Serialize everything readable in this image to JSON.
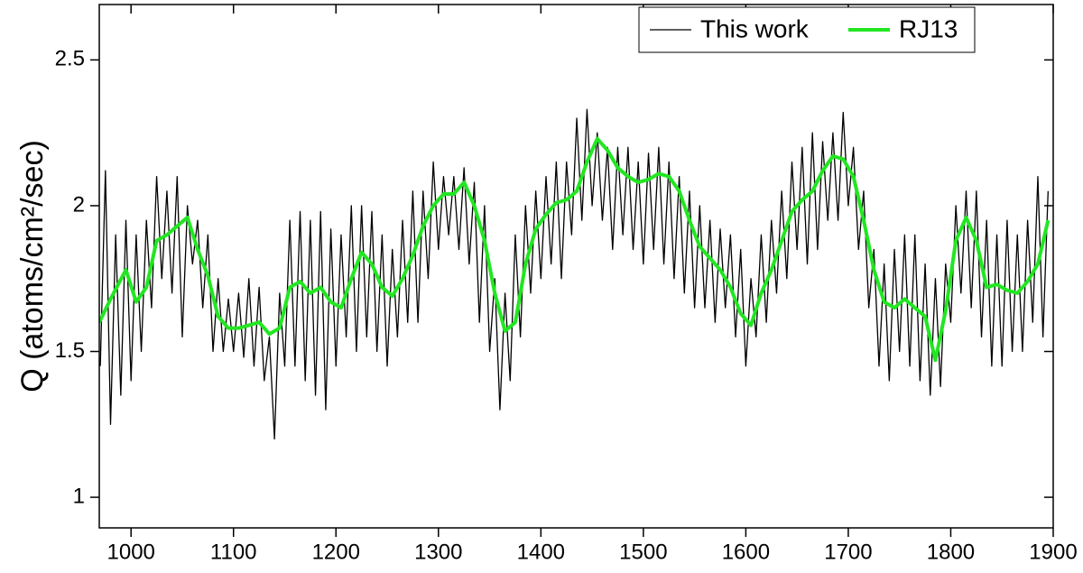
{
  "chart_data": {
    "type": "line",
    "ylabel": "Q (atoms/cm²/sec)",
    "xlim": [
      969,
      1900
    ],
    "xticks": [
      1000,
      1100,
      1200,
      1300,
      1400,
      1500,
      1600,
      1700,
      1800,
      1900
    ],
    "ylim": [
      0.895,
      2.69
    ],
    "yticks": [
      1,
      1.5,
      2,
      2.5
    ],
    "legend": "upper right",
    "series": [
      {
        "name": "This work",
        "color": "#000000",
        "x": [
          970,
          975,
          980,
          985,
          990,
          995,
          1000,
          1005,
          1010,
          1015,
          1020,
          1025,
          1030,
          1035,
          1040,
          1045,
          1050,
          1055,
          1060,
          1065,
          1070,
          1075,
          1080,
          1085,
          1090,
          1095,
          1100,
          1105,
          1110,
          1115,
          1120,
          1125,
          1130,
          1135,
          1140,
          1145,
          1150,
          1155,
          1160,
          1165,
          1170,
          1175,
          1180,
          1185,
          1190,
          1195,
          1200,
          1205,
          1210,
          1215,
          1220,
          1225,
          1230,
          1235,
          1240,
          1245,
          1250,
          1255,
          1260,
          1265,
          1270,
          1275,
          1280,
          1285,
          1290,
          1295,
          1300,
          1305,
          1310,
          1315,
          1320,
          1325,
          1330,
          1335,
          1340,
          1345,
          1350,
          1355,
          1360,
          1365,
          1370,
          1375,
          1380,
          1385,
          1390,
          1395,
          1400,
          1405,
          1410,
          1415,
          1420,
          1425,
          1430,
          1435,
          1440,
          1445,
          1450,
          1455,
          1460,
          1465,
          1470,
          1475,
          1480,
          1485,
          1490,
          1495,
          1500,
          1505,
          1510,
          1515,
          1520,
          1525,
          1530,
          1535,
          1540,
          1545,
          1550,
          1555,
          1560,
          1565,
          1570,
          1575,
          1580,
          1585,
          1590,
          1595,
          1600,
          1605,
          1610,
          1615,
          1620,
          1625,
          1630,
          1635,
          1640,
          1645,
          1650,
          1655,
          1660,
          1665,
          1670,
          1675,
          1680,
          1685,
          1690,
          1695,
          1700,
          1705,
          1710,
          1715,
          1720,
          1725,
          1730,
          1735,
          1740,
          1745,
          1750,
          1755,
          1760,
          1765,
          1770,
          1775,
          1780,
          1785,
          1790,
          1795,
          1800,
          1805,
          1810,
          1815,
          1820,
          1825,
          1830,
          1835,
          1840,
          1845,
          1850,
          1855,
          1860,
          1865,
          1870,
          1875,
          1880,
          1885,
          1890,
          1895
        ],
        "values": [
          1.45,
          2.12,
          1.25,
          1.9,
          1.35,
          1.95,
          1.4,
          1.9,
          1.5,
          1.95,
          1.65,
          2.1,
          1.75,
          2.05,
          1.7,
          2.1,
          1.55,
          2.0,
          1.8,
          1.95,
          1.65,
          1.9,
          1.5,
          1.75,
          1.5,
          1.68,
          1.5,
          1.7,
          1.48,
          1.75,
          1.45,
          1.72,
          1.4,
          1.55,
          1.2,
          1.7,
          1.45,
          1.95,
          1.45,
          1.98,
          1.4,
          1.95,
          1.35,
          1.98,
          1.3,
          1.92,
          1.45,
          1.9,
          1.55,
          2.0,
          1.5,
          2.0,
          1.55,
          1.98,
          1.5,
          1.9,
          1.45,
          1.85,
          1.55,
          1.95,
          1.6,
          2.05,
          1.6,
          2.05,
          1.75,
          2.15,
          1.85,
          2.1,
          1.9,
          2.1,
          1.85,
          2.13,
          1.8,
          2.08,
          1.6,
          2.0,
          1.5,
          1.75,
          1.3,
          1.7,
          1.4,
          1.9,
          1.55,
          2.0,
          1.7,
          2.05,
          1.75,
          2.1,
          1.8,
          2.15,
          1.75,
          2.15,
          1.9,
          2.3,
          1.95,
          2.33,
          2.0,
          2.25,
          1.95,
          2.2,
          1.85,
          2.2,
          1.9,
          2.2,
          1.85,
          2.15,
          1.8,
          2.18,
          1.85,
          2.2,
          1.8,
          2.15,
          1.75,
          2.1,
          1.7,
          2.05,
          1.65,
          2.0,
          1.65,
          1.95,
          1.6,
          1.92,
          1.65,
          1.9,
          1.55,
          1.85,
          1.45,
          1.75,
          1.55,
          1.9,
          1.6,
          1.95,
          1.7,
          2.05,
          1.75,
          2.15,
          1.85,
          2.2,
          1.8,
          2.25,
          1.85,
          2.22,
          1.95,
          2.25,
          1.95,
          2.32,
          2.0,
          2.2,
          1.85,
          2.05,
          1.65,
          1.85,
          1.45,
          1.8,
          1.4,
          1.85,
          1.5,
          1.9,
          1.45,
          1.9,
          1.4,
          1.8,
          1.35,
          1.75,
          1.38,
          1.8,
          1.6,
          2.0,
          1.7,
          2.05,
          1.65,
          2.05,
          1.55,
          1.95,
          1.45,
          1.9,
          1.45,
          1.95,
          1.5,
          1.9,
          1.5,
          1.95,
          1.6,
          2.1,
          1.55,
          2.05
        ]
      },
      {
        "name": "RJ13",
        "color": "#22e622",
        "x": [
          969,
          980,
          995,
          1005,
          1015,
          1025,
          1035,
          1045,
          1055,
          1065,
          1075,
          1085,
          1095,
          1105,
          1115,
          1125,
          1135,
          1145,
          1155,
          1165,
          1175,
          1185,
          1195,
          1205,
          1215,
          1225,
          1235,
          1245,
          1255,
          1265,
          1275,
          1285,
          1295,
          1305,
          1315,
          1325,
          1335,
          1345,
          1355,
          1365,
          1375,
          1385,
          1395,
          1405,
          1415,
          1425,
          1435,
          1445,
          1455,
          1465,
          1475,
          1485,
          1495,
          1505,
          1515,
          1525,
          1535,
          1545,
          1555,
          1565,
          1575,
          1585,
          1595,
          1605,
          1615,
          1625,
          1635,
          1645,
          1655,
          1665,
          1675,
          1685,
          1695,
          1705,
          1715,
          1725,
          1735,
          1745,
          1755,
          1765,
          1775,
          1785,
          1795,
          1805,
          1815,
          1825,
          1835,
          1845,
          1855,
          1865,
          1875,
          1885,
          1895
        ],
        "values": [
          1.6,
          1.68,
          1.78,
          1.67,
          1.72,
          1.88,
          1.9,
          1.93,
          1.96,
          1.85,
          1.76,
          1.62,
          1.58,
          1.58,
          1.59,
          1.6,
          1.56,
          1.58,
          1.72,
          1.74,
          1.7,
          1.72,
          1.67,
          1.65,
          1.75,
          1.84,
          1.8,
          1.72,
          1.69,
          1.75,
          1.83,
          1.93,
          2.0,
          2.04,
          2.04,
          2.08,
          2.0,
          1.88,
          1.7,
          1.57,
          1.6,
          1.8,
          1.92,
          1.97,
          2.01,
          2.02,
          2.05,
          2.15,
          2.23,
          2.19,
          2.13,
          2.1,
          2.08,
          2.09,
          2.11,
          2.1,
          2.05,
          1.95,
          1.86,
          1.82,
          1.78,
          1.72,
          1.63,
          1.59,
          1.7,
          1.78,
          1.88,
          1.98,
          2.02,
          2.05,
          2.12,
          2.17,
          2.16,
          2.1,
          1.95,
          1.78,
          1.67,
          1.65,
          1.68,
          1.65,
          1.62,
          1.47,
          1.64,
          1.88,
          1.96,
          1.88,
          1.72,
          1.73,
          1.71,
          1.7,
          1.74,
          1.8,
          1.95
        ]
      }
    ]
  }
}
